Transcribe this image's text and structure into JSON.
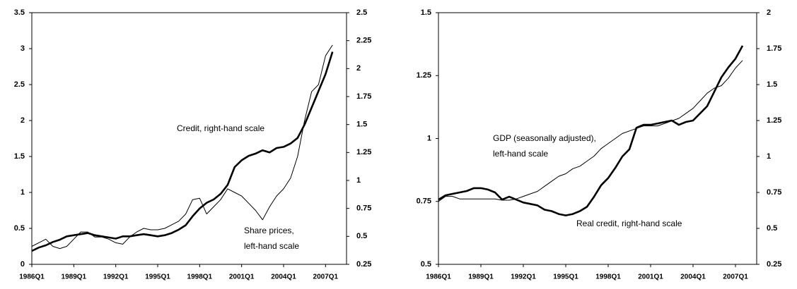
{
  "chart_data": [
    {
      "type": "line",
      "categories": [
        "1986Q1",
        null,
        null,
        null,
        null,
        null,
        "1989Q1",
        null,
        null,
        null,
        null,
        null,
        "1992Q1",
        null,
        null,
        null,
        null,
        null,
        "1995Q1",
        null,
        null,
        null,
        null,
        null,
        "1998Q1",
        null,
        null,
        null,
        null,
        null,
        "2001Q1",
        null,
        null,
        null,
        null,
        null,
        "2004Q1",
        null,
        null,
        null,
        null,
        null,
        "2007Q1",
        null
      ],
      "ylim": [
        0,
        3.5
      ],
      "yticks": [
        0,
        0.5,
        1,
        1.5,
        2,
        2.5,
        3,
        3.5
      ],
      "y2lim": [
        0.25,
        2.5
      ],
      "y2ticks": [
        0.25,
        0.5,
        0.75,
        1,
        1.25,
        1.5,
        1.75,
        2,
        2.25,
        2.5
      ],
      "series": [
        {
          "label": [
            "Credit, right-hand scale"
          ],
          "axis": "y2",
          "color": "#000000",
          "linewidth": 2.6,
          "values": [
            0.37,
            0.4,
            0.42,
            0.45,
            0.47,
            0.5,
            0.51,
            0.52,
            0.53,
            0.51,
            0.5,
            0.49,
            0.48,
            0.5,
            0.5,
            0.51,
            0.52,
            0.51,
            0.5,
            0.51,
            0.53,
            0.56,
            0.6,
            0.68,
            0.75,
            0.8,
            0.83,
            0.88,
            0.96,
            1.12,
            1.18,
            1.22,
            1.24,
            1.27,
            1.25,
            1.29,
            1.3,
            1.33,
            1.38,
            1.5,
            1.65,
            1.8,
            1.95,
            2.15
          ]
        },
        {
          "label": [
            "Share prices,",
            "left-hand scale"
          ],
          "axis": "y",
          "color": "#000000",
          "linewidth": 1,
          "values": [
            0.25,
            0.3,
            0.35,
            0.25,
            0.22,
            0.25,
            0.35,
            0.45,
            0.45,
            0.38,
            0.38,
            0.35,
            0.3,
            0.28,
            0.38,
            0.45,
            0.5,
            0.48,
            0.48,
            0.5,
            0.55,
            0.6,
            0.7,
            0.9,
            0.92,
            0.7,
            0.8,
            0.9,
            1.05,
            1.0,
            0.95,
            0.85,
            0.75,
            0.62,
            0.8,
            0.95,
            1.05,
            1.2,
            1.5,
            2.0,
            2.4,
            2.5,
            2.9,
            3.05
          ]
        }
      ]
    },
    {
      "type": "line",
      "categories": [
        "1986Q1",
        null,
        null,
        null,
        null,
        null,
        "1989Q1",
        null,
        null,
        null,
        null,
        null,
        "1992Q1",
        null,
        null,
        null,
        null,
        null,
        "1995Q1",
        null,
        null,
        null,
        null,
        null,
        "1998Q1",
        null,
        null,
        null,
        null,
        null,
        "2001Q1",
        null,
        null,
        null,
        null,
        null,
        "2004Q1",
        null,
        null,
        null,
        null,
        null,
        "2007Q1",
        null
      ],
      "ylim": [
        0.5,
        1.5
      ],
      "yticks": [
        0.5,
        0.75,
        1,
        1.25,
        1.5
      ],
      "y2lim": [
        0.25,
        2
      ],
      "y2ticks": [
        0.25,
        0.5,
        0.75,
        1,
        1.25,
        1.5,
        1.75,
        2
      ],
      "series": [
        {
          "label": [
            "GDP (seasonally adjusted),",
            "left-hand scale"
          ],
          "axis": "y",
          "color": "#000000",
          "linewidth": 1,
          "values": [
            0.75,
            0.77,
            0.77,
            0.76,
            0.76,
            0.76,
            0.76,
            0.76,
            0.76,
            0.755,
            0.755,
            0.76,
            0.77,
            0.78,
            0.79,
            0.81,
            0.83,
            0.85,
            0.86,
            0.88,
            0.89,
            0.91,
            0.93,
            0.96,
            0.98,
            1.0,
            1.02,
            1.03,
            1.04,
            1.05,
            1.05,
            1.05,
            1.06,
            1.07,
            1.08,
            1.1,
            1.12,
            1.15,
            1.18,
            1.2,
            1.21,
            1.24,
            1.28,
            1.31
          ]
        },
        {
          "label": [
            "Real credit, right-hand scale"
          ],
          "axis": "y2",
          "color": "#000000",
          "linewidth": 2.6,
          "values": [
            0.7,
            0.73,
            0.74,
            0.75,
            0.76,
            0.78,
            0.78,
            0.77,
            0.75,
            0.7,
            0.72,
            0.7,
            0.68,
            0.67,
            0.66,
            0.63,
            0.62,
            0.6,
            0.59,
            0.6,
            0.62,
            0.65,
            0.72,
            0.8,
            0.85,
            0.92,
            1.0,
            1.05,
            1.2,
            1.22,
            1.22,
            1.23,
            1.24,
            1.25,
            1.22,
            1.24,
            1.25,
            1.3,
            1.35,
            1.45,
            1.55,
            1.62,
            1.68,
            1.77
          ]
        }
      ]
    }
  ]
}
